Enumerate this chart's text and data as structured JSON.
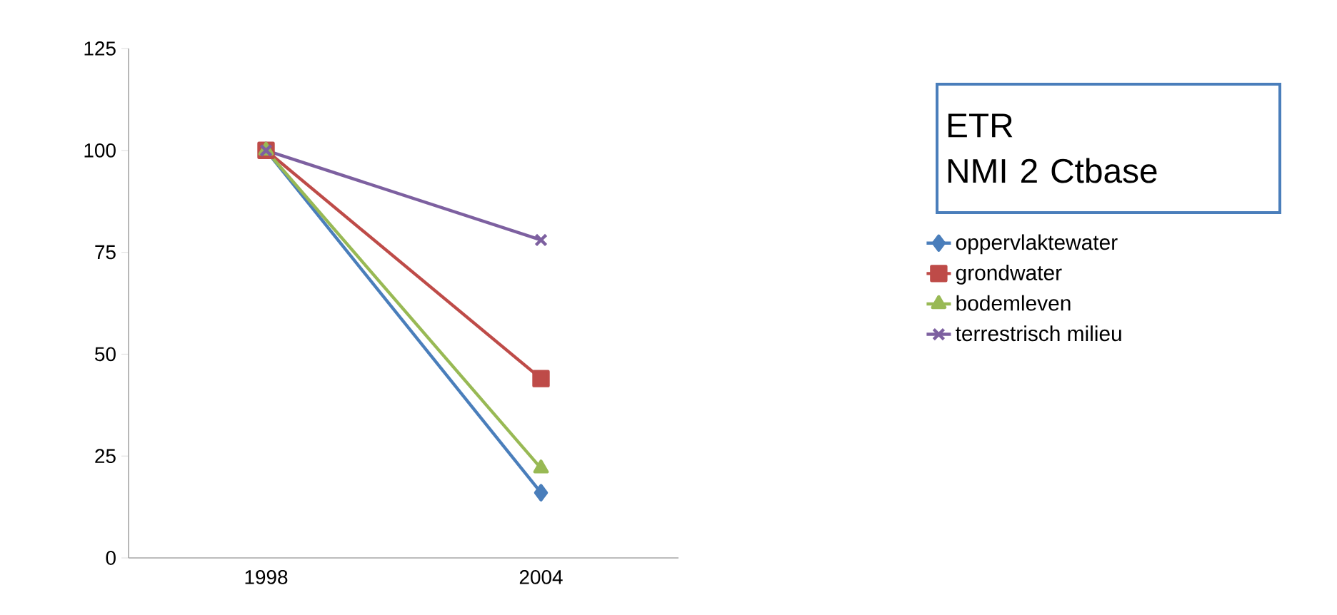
{
  "chart_data": {
    "type": "line",
    "title": "ETR",
    "subtitle": "NMI 2 Ctbase",
    "categories": [
      "1998",
      "2004"
    ],
    "series": [
      {
        "name": "oppervlaktewater",
        "color": "#4a7ebb",
        "marker": "diamond",
        "values": [
          100,
          16
        ]
      },
      {
        "name": "grondwater",
        "color": "#be4b48",
        "marker": "square",
        "values": [
          100,
          44
        ]
      },
      {
        "name": "bodemleven",
        "color": "#98b954",
        "marker": "triangle",
        "values": [
          100,
          22
        ]
      },
      {
        "name": "terrestrisch milieu",
        "color": "#7d60a0",
        "marker": "cross",
        "values": [
          100,
          78
        ]
      }
    ],
    "ylim": [
      0,
      125
    ],
    "yticks": [
      0,
      25,
      50,
      75,
      100,
      125
    ],
    "grid": false,
    "legend": "right"
  }
}
